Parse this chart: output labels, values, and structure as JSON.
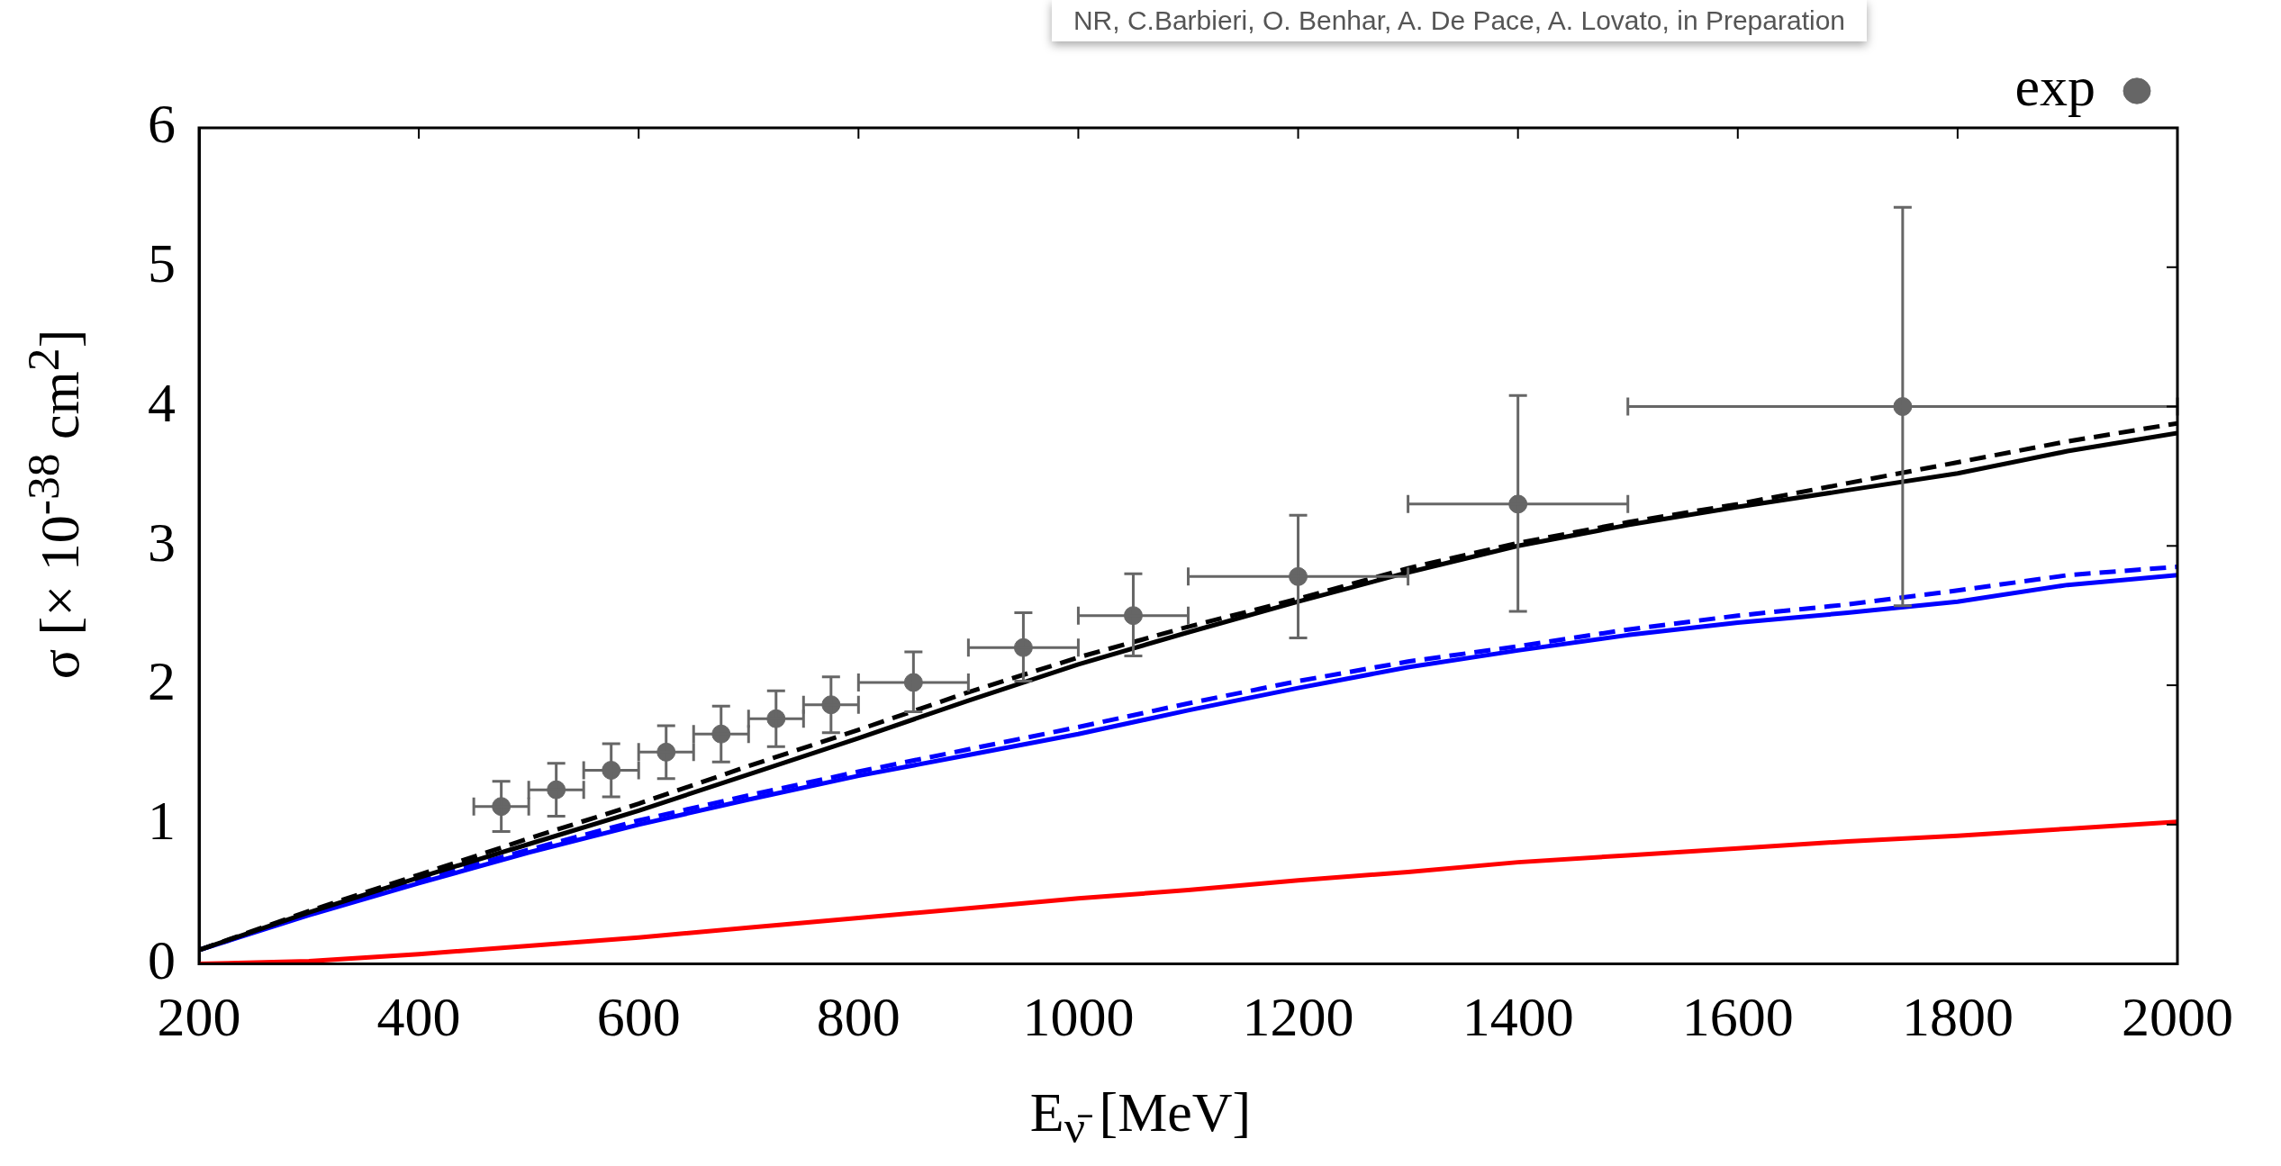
{
  "chart_data": {
    "type": "line",
    "xlabel": "E$_{ν̄}$ [MeV]",
    "ylabel": "σ [× 10$^{-38}$ cm$^{2}$]",
    "annotations": [
      "NR, C.Barbieri, O. Benhar, A. De Pace, A. Lovato, in Preparation"
    ],
    "xlim": [
      200,
      2000
    ],
    "xticks": [
      200,
      400,
      600,
      800,
      1000,
      1200,
      1400,
      1600,
      1800,
      2000
    ],
    "ylim": [
      0,
      6
    ],
    "yticks": [
      0,
      1,
      2,
      3,
      4,
      5,
      6
    ],
    "grid": false,
    "legend": "top right",
    "series": [
      {
        "color": "#000000",
        "line_style": "solid",
        "x": [
          200,
          300,
          400,
          500,
          600,
          700,
          800,
          900,
          1000,
          1100,
          1200,
          1300,
          1400,
          1500,
          1600,
          1700,
          1800,
          1900,
          2000
        ],
        "values": [
          0.1,
          0.37,
          0.62,
          0.86,
          1.1,
          1.36,
          1.62,
          1.89,
          2.15,
          2.38,
          2.6,
          2.81,
          3.0,
          3.15,
          3.28,
          3.4,
          3.52,
          3.68,
          3.81
        ]
      },
      {
        "color": "#000000",
        "line_style": "dashed",
        "x": [
          200,
          300,
          400,
          500,
          600,
          700,
          800,
          900,
          1000,
          1100,
          1200,
          1300,
          1400,
          1500,
          1600,
          1700,
          1800,
          1900,
          2000
        ],
        "values": [
          0.1,
          0.38,
          0.64,
          0.9,
          1.15,
          1.42,
          1.68,
          1.95,
          2.2,
          2.42,
          2.62,
          2.84,
          3.02,
          3.17,
          3.3,
          3.45,
          3.6,
          3.75,
          3.88
        ]
      },
      {
        "color": "#0000ff",
        "line_style": "solid",
        "x": [
          200,
          300,
          400,
          500,
          600,
          700,
          800,
          900,
          1000,
          1100,
          1200,
          1300,
          1400,
          1500,
          1600,
          1700,
          1800,
          1900,
          2000
        ],
        "values": [
          0.1,
          0.35,
          0.58,
          0.8,
          1.0,
          1.18,
          1.35,
          1.5,
          1.65,
          1.82,
          1.98,
          2.13,
          2.25,
          2.36,
          2.45,
          2.52,
          2.6,
          2.72,
          2.79
        ]
      },
      {
        "color": "#0000ff",
        "line_style": "dashed",
        "x": [
          200,
          300,
          400,
          500,
          600,
          700,
          800,
          900,
          1000,
          1100,
          1200,
          1300,
          1400,
          1500,
          1600,
          1700,
          1800,
          1900,
          2000
        ],
        "values": [
          0.1,
          0.36,
          0.6,
          0.82,
          1.03,
          1.21,
          1.38,
          1.54,
          1.7,
          1.87,
          2.03,
          2.17,
          2.28,
          2.4,
          2.5,
          2.58,
          2.68,
          2.79,
          2.85
        ]
      },
      {
        "color": "#ff0000",
        "line_style": "solid",
        "x": [
          200,
          300,
          400,
          500,
          600,
          700,
          800,
          900,
          1000,
          1100,
          1200,
          1300,
          1400,
          1500,
          1600,
          1700,
          1800,
          1900,
          2000
        ],
        "values": [
          0,
          0.02,
          0.07,
          0.13,
          0.19,
          0.26,
          0.33,
          0.4,
          0.47,
          0.53,
          0.6,
          0.66,
          0.73,
          0.78,
          0.83,
          0.88,
          0.92,
          0.97,
          1.02
        ]
      },
      {
        "type": "scatter",
        "name": "exp",
        "color": "#666666",
        "marker": "circle",
        "x": [
          475,
          525,
          575,
          625,
          675,
          725,
          775,
          850,
          950,
          1050,
          1200,
          1400,
          1750
        ],
        "values": [
          1.13,
          1.25,
          1.39,
          1.52,
          1.65,
          1.76,
          1.86,
          2.02,
          2.27,
          2.5,
          2.78,
          3.3,
          4.0
        ],
        "errors": [
          [
            0.95,
            1.31
          ],
          [
            1.06,
            1.44
          ],
          [
            1.2,
            1.58
          ],
          [
            1.33,
            1.71
          ],
          [
            1.45,
            1.85
          ],
          [
            1.56,
            1.96
          ],
          [
            1.66,
            2.06
          ],
          [
            1.81,
            2.24
          ],
          [
            2.03,
            2.52
          ],
          [
            2.21,
            2.8
          ],
          [
            2.34,
            3.22
          ],
          [
            2.53,
            4.08
          ],
          [
            2.57,
            5.43
          ]
        ],
        "xerrors": [
          [
            450,
            500
          ],
          [
            500,
            550
          ],
          [
            550,
            600
          ],
          [
            600,
            650
          ],
          [
            650,
            700
          ],
          [
            700,
            750
          ],
          [
            750,
            800
          ],
          [
            800,
            900
          ],
          [
            900,
            1000
          ],
          [
            1000,
            1100
          ],
          [
            1100,
            1300
          ],
          [
            1300,
            1500
          ],
          [
            1500,
            2000
          ]
        ]
      }
    ]
  }
}
